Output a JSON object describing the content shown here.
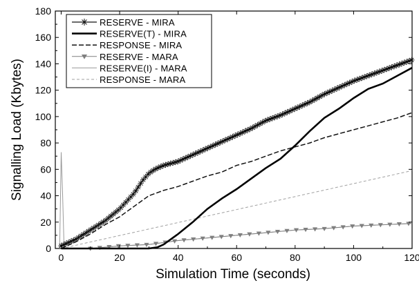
{
  "chart_data": {
    "type": "line",
    "xlabel": "Simulation Time (seconds)",
    "ylabel": "Signalling Load (Kbytes)",
    "xlim": [
      -2,
      120
    ],
    "ylim": [
      0,
      180
    ],
    "x_ticks": [
      0,
      20,
      40,
      60,
      80,
      100,
      120
    ],
    "y_ticks": [
      0,
      20,
      40,
      60,
      80,
      100,
      120,
      140,
      160,
      180
    ],
    "grid": false,
    "legend_position": "top-left",
    "series": [
      {
        "name": "RESERVE - MIRA",
        "style": "star-markers",
        "color": "#111111",
        "points": [
          [
            0,
            2
          ],
          [
            5,
            7
          ],
          [
            10,
            14
          ],
          [
            15,
            21
          ],
          [
            20,
            30
          ],
          [
            25,
            42
          ],
          [
            28,
            52
          ],
          [
            30,
            57
          ],
          [
            32,
            60
          ],
          [
            35,
            63
          ],
          [
            40,
            66
          ],
          [
            45,
            71
          ],
          [
            50,
            76
          ],
          [
            55,
            81
          ],
          [
            60,
            86
          ],
          [
            65,
            91
          ],
          [
            70,
            97
          ],
          [
            75,
            101
          ],
          [
            80,
            106
          ],
          [
            85,
            111
          ],
          [
            90,
            117
          ],
          [
            95,
            122
          ],
          [
            100,
            127
          ],
          [
            105,
            131
          ],
          [
            110,
            135
          ],
          [
            115,
            139
          ],
          [
            120,
            143
          ]
        ]
      },
      {
        "name": "RESERVE(T) - MIRA",
        "style": "thick-solid",
        "color": "#000000",
        "points": [
          [
            0,
            0
          ],
          [
            30,
            0
          ],
          [
            33,
            1
          ],
          [
            35,
            3
          ],
          [
            40,
            11
          ],
          [
            45,
            20
          ],
          [
            50,
            30
          ],
          [
            55,
            38
          ],
          [
            60,
            45
          ],
          [
            65,
            53
          ],
          [
            70,
            61
          ],
          [
            75,
            68
          ],
          [
            80,
            78
          ],
          [
            85,
            89
          ],
          [
            90,
            99
          ],
          [
            95,
            106
          ],
          [
            100,
            114
          ],
          [
            105,
            121
          ],
          [
            110,
            125
          ],
          [
            115,
            131
          ],
          [
            120,
            137
          ]
        ]
      },
      {
        "name": "RESPONSE - MIRA",
        "style": "dashed",
        "color": "#111111",
        "points": [
          [
            0,
            0
          ],
          [
            5,
            5
          ],
          [
            10,
            11
          ],
          [
            15,
            18
          ],
          [
            20,
            24
          ],
          [
            25,
            32
          ],
          [
            30,
            40
          ],
          [
            35,
            44
          ],
          [
            40,
            47
          ],
          [
            45,
            51
          ],
          [
            50,
            55
          ],
          [
            55,
            58
          ],
          [
            60,
            63
          ],
          [
            65,
            66
          ],
          [
            70,
            70
          ],
          [
            75,
            74
          ],
          [
            80,
            77
          ],
          [
            85,
            80
          ],
          [
            90,
            84
          ],
          [
            95,
            87
          ],
          [
            100,
            90
          ],
          [
            105,
            93
          ],
          [
            110,
            96
          ],
          [
            115,
            99
          ],
          [
            120,
            103
          ]
        ]
      },
      {
        "name": "RESERVE - MARA",
        "style": "triangle-markers",
        "color": "#7f7f7f",
        "points": [
          [
            0,
            0
          ],
          [
            10,
            0
          ],
          [
            15,
            1
          ],
          [
            20,
            2
          ],
          [
            30,
            3
          ],
          [
            40,
            6
          ],
          [
            50,
            8
          ],
          [
            60,
            10
          ],
          [
            70,
            12
          ],
          [
            80,
            14
          ],
          [
            90,
            15
          ],
          [
            100,
            17
          ],
          [
            110,
            18
          ],
          [
            120,
            19
          ]
        ]
      },
      {
        "name": "RESERVE(I) - MARA",
        "style": "thin-solid",
        "color": "#9a9a9a",
        "points": [
          [
            -0.5,
            0
          ],
          [
            0,
            73
          ],
          [
            0.5,
            40
          ],
          [
            1,
            0
          ],
          [
            10,
            0
          ],
          [
            20,
            2
          ],
          [
            30,
            3
          ],
          [
            40,
            6
          ],
          [
            50,
            8
          ],
          [
            60,
            10
          ],
          [
            70,
            12
          ],
          [
            80,
            14
          ],
          [
            90,
            15
          ],
          [
            100,
            17
          ],
          [
            110,
            18
          ],
          [
            120,
            19
          ]
        ]
      },
      {
        "name": "RESPONSE - MARA",
        "style": "thin-dashed",
        "color": "#a0a0a0",
        "points": [
          [
            0,
            0
          ],
          [
            120,
            59
          ]
        ]
      }
    ]
  }
}
